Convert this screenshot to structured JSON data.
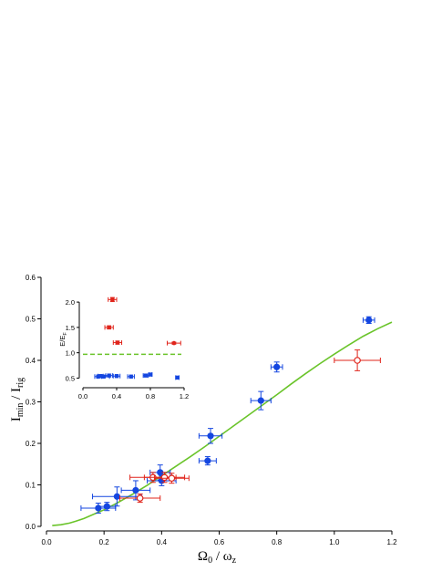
{
  "chart_data": [
    {
      "type": "scatter",
      "role": "main",
      "xlabel_main": "Ω",
      "xlabel_sub": "0",
      "xlabel_mid": " / ω",
      "xlabel_sub2": "z",
      "ylabel_main": "I",
      "ylabel_sub": "min",
      "ylabel_mid": " / I",
      "ylabel_sub2": "rig",
      "xlim": [
        0,
        1.2
      ],
      "ylim": [
        0,
        0.6
      ],
      "xticks": [
        0.0,
        0.2,
        0.4,
        0.6,
        0.8,
        1.0,
        1.2
      ],
      "yticks": [
        0.0,
        0.1,
        0.2,
        0.3,
        0.4,
        0.5,
        0.6
      ],
      "xtick_labels": [
        "0.0",
        "0.2",
        "0.4",
        "0.6",
        "0.8",
        "1.0",
        "1.2"
      ],
      "ytick_labels": [
        "0.0",
        "0.1",
        "0.2",
        "0.3",
        "0.4",
        "0.5",
        "0.6"
      ],
      "series": [
        {
          "color": "#1446e0",
          "marker": "filled-circle",
          "points": [
            {
              "x": 0.18,
              "y": 0.044,
              "xerr": 0.06,
              "yerr": 0.012
            },
            {
              "x": 0.21,
              "y": 0.048,
              "xerr": 0.03,
              "yerr": 0.01
            },
            {
              "x": 0.245,
              "y": 0.072,
              "xerr": 0.085,
              "yerr": 0.023
            },
            {
              "x": 0.31,
              "y": 0.087,
              "xerr": 0.05,
              "yerr": 0.023
            },
            {
              "x": 0.395,
              "y": 0.13,
              "xerr": 0.035,
              "yerr": 0.018
            },
            {
              "x": 0.4,
              "y": 0.11,
              "xerr": 0.05,
              "yerr": 0.012
            },
            {
              "x": 0.56,
              "y": 0.158,
              "xerr": 0.03,
              "yerr": 0.01
            },
            {
              "x": 0.57,
              "y": 0.218,
              "xerr": 0.04,
              "yerr": 0.018
            },
            {
              "x": 0.745,
              "y": 0.303,
              "xerr": 0.035,
              "yerr": 0.022
            },
            {
              "x": 0.8,
              "y": 0.384,
              "xerr": 0.02,
              "yerr": 0.012
            },
            {
              "x": 1.12,
              "y": 0.497,
              "xerr": 0.02,
              "yerr": 0.008
            }
          ]
        },
        {
          "color": "#e0241b",
          "marker": "open-circle",
          "points": [
            {
              "x": 0.325,
              "y": 0.068,
              "xerr": 0.07,
              "yerr": 0.01
            },
            {
              "x": 0.37,
              "y": 0.118,
              "xerr": 0.08,
              "yerr": 0.012
            },
            {
              "x": 0.41,
              "y": 0.118,
              "xerr": 0.07,
              "yerr": 0.012
            },
            {
              "x": 0.435,
              "y": 0.116,
              "xerr": 0.06,
              "yerr": 0.012
            },
            {
              "x": 1.08,
              "y": 0.4,
              "xerr": 0.08,
              "yerr": 0.025
            }
          ]
        }
      ],
      "curve": {
        "color": "#6ac42a",
        "x": [
          0.02,
          0.05,
          0.08,
          0.1,
          0.13,
          0.16,
          0.2,
          0.25,
          0.3,
          0.35,
          0.4,
          0.45,
          0.5,
          0.55,
          0.6,
          0.65,
          0.7,
          0.75,
          0.8,
          0.85,
          0.9,
          0.95,
          1.0,
          1.05,
          1.1,
          1.15,
          1.2
        ],
        "y": [
          0.002,
          0.004,
          0.008,
          0.012,
          0.019,
          0.028,
          0.04,
          0.058,
          0.078,
          0.099,
          0.122,
          0.145,
          0.168,
          0.192,
          0.217,
          0.242,
          0.267,
          0.292,
          0.317,
          0.343,
          0.368,
          0.392,
          0.415,
          0.437,
          0.458,
          0.476,
          0.492
        ]
      }
    },
    {
      "type": "scatter",
      "role": "inset",
      "ylabel": "E/E",
      "ylabel_sub": "F",
      "xlim": [
        0,
        1.2
      ],
      "ylim": [
        0.4,
        2.2
      ],
      "xticks": [
        0.0,
        0.4,
        0.8,
        1.2
      ],
      "yticks": [
        0.5,
        1.0,
        1.5,
        2.0
      ],
      "xtick_labels": [
        "0.0",
        "0.4",
        "0.8",
        "1.2"
      ],
      "ytick_labels": [
        "0.5",
        "1.0",
        "1.5",
        "2.0"
      ],
      "reference_line": {
        "y": 0.97,
        "color": "#6ac42a",
        "style": "dashed"
      },
      "series": [
        {
          "color": "#1446e0",
          "marker": "filled-square",
          "points": [
            {
              "x": 0.18,
              "y": 0.53,
              "xerr": 0.04
            },
            {
              "x": 0.21,
              "y": 0.54,
              "xerr": 0.03
            },
            {
              "x": 0.245,
              "y": 0.53,
              "xerr": 0.07
            },
            {
              "x": 0.31,
              "y": 0.55,
              "xerr": 0.04
            },
            {
              "x": 0.4,
              "y": 0.54,
              "xerr": 0.04
            },
            {
              "x": 0.57,
              "y": 0.53,
              "xerr": 0.04
            },
            {
              "x": 0.745,
              "y": 0.55,
              "xerr": 0.03
            },
            {
              "x": 0.8,
              "y": 0.57,
              "xerr": 0.02
            },
            {
              "x": 1.12,
              "y": 0.51,
              "xerr": 0.02
            }
          ]
        },
        {
          "color": "#e0241b",
          "marker": "filled-square",
          "points": [
            {
              "x": 0.35,
              "y": 2.05,
              "xerr": 0.05,
              "yerr": 0.04
            },
            {
              "x": 0.31,
              "y": 1.5,
              "xerr": 0.05,
              "yerr": 0.03
            },
            {
              "x": 0.41,
              "y": 1.2,
              "xerr": 0.05,
              "yerr": 0.03
            },
            {
              "x": 1.08,
              "y": 1.19,
              "xerr": 0.08,
              "yerr": 0.02
            }
          ]
        }
      ]
    }
  ]
}
